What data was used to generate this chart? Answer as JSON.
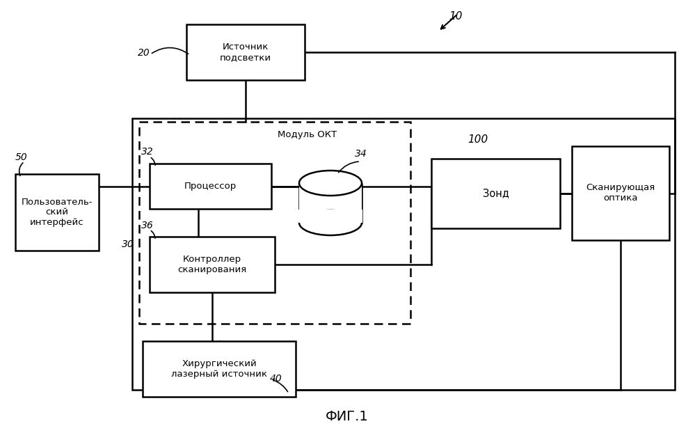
{
  "bg_color": "#ffffff",
  "fig_caption": "ФИГ.1",
  "label_10": "10",
  "label_20": "20",
  "label_30": "30",
  "label_32": "32",
  "label_34": "34",
  "label_36": "36",
  "label_40": "40",
  "label_50": "50",
  "label_100": "100",
  "box_istochnik": "Источник\nподсветки",
  "box_processor": "Процессор",
  "box_controller": "Контроллер\nсканирования",
  "box_laser": "Хирургический\nлазерный источник",
  "box_user": "Пользователь-\nский\nинтерфейс",
  "box_zond": "Зонд",
  "box_scan_optics": "Сканирующая\nоптика",
  "label_oct": "Модуль ОКТ"
}
